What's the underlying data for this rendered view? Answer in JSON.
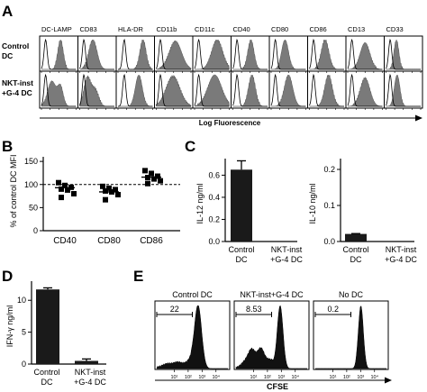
{
  "panels": {
    "A": {
      "letter": "A",
      "row_labels": [
        [
          "Control",
          "DC"
        ],
        [
          "NKT-inst",
          "+G-4 DC"
        ]
      ],
      "markers": [
        "DC-LAMP",
        "CD83",
        "HLA-DR",
        "CD11b",
        "CD11c",
        "CD40",
        "CD80",
        "CD86",
        "CD13",
        "CD33"
      ],
      "axis_label": "Log Fluorescence"
    },
    "B": {
      "letter": "B"
    },
    "C": {
      "letter": "C"
    },
    "D": {
      "letter": "D"
    },
    "E": {
      "letter": "E",
      "titles": [
        "Control DC",
        "NKT-inst+G-4 DC",
        "No DC"
      ],
      "gate_values": [
        "22",
        "8.53",
        "0.2"
      ],
      "axis_label": "CFSE",
      "tick_labels": [
        "10¹",
        "10²",
        "10³",
        "10⁴"
      ]
    }
  },
  "chart_data": [
    {
      "panel": "B",
      "type": "scatter",
      "ylabel": "% of control DC MFI",
      "categories": [
        "CD40",
        "CD80",
        "CD86"
      ],
      "yticks": [
        0,
        50,
        100,
        150
      ],
      "ylim": [
        0,
        160
      ],
      "reference_line": 100,
      "points": [
        [
          104,
          98,
          94,
          90,
          88,
          80,
          72
        ],
        [
          96,
          92,
          89,
          86,
          84,
          78,
          67
        ],
        [
          130,
          124,
          118,
          115,
          112,
          108,
          102
        ]
      ],
      "means": [
        93,
        84,
        116
      ]
    },
    {
      "panel": "C",
      "type": "bar",
      "categories": [
        [
          "Control",
          "DC"
        ],
        [
          "NKT-inst",
          "+G-4 DC"
        ]
      ],
      "ylabel": "IL-12 ng/ml",
      "yticks": [
        0.0,
        0.2,
        0.4,
        0.6
      ],
      "ylim": [
        0,
        0.75
      ],
      "values": [
        0.65,
        0.0
      ],
      "errors": [
        0.08,
        0.0
      ]
    },
    {
      "panel": "C",
      "type": "bar",
      "categories": [
        [
          "Control",
          "DC"
        ],
        [
          "NKT-inst",
          "+G-4 DC"
        ]
      ],
      "ylabel": "IL-10 ng/ml",
      "yticks": [
        0.0,
        0.1,
        0.2
      ],
      "ylim": [
        0,
        0.23
      ],
      "values": [
        0.021,
        0.0
      ],
      "errors": [
        0.001,
        0.0
      ]
    },
    {
      "panel": "D",
      "type": "bar",
      "categories": [
        [
          "Control",
          "DC"
        ],
        [
          "NKT-inst",
          "+G-4 DC"
        ]
      ],
      "ylabel": "IFN-γ ng/ml",
      "yticks": [
        0,
        5,
        10
      ],
      "ylim": [
        0,
        13
      ],
      "values": [
        11.7,
        0.5
      ],
      "errors": [
        0.25,
        0.3
      ]
    }
  ]
}
